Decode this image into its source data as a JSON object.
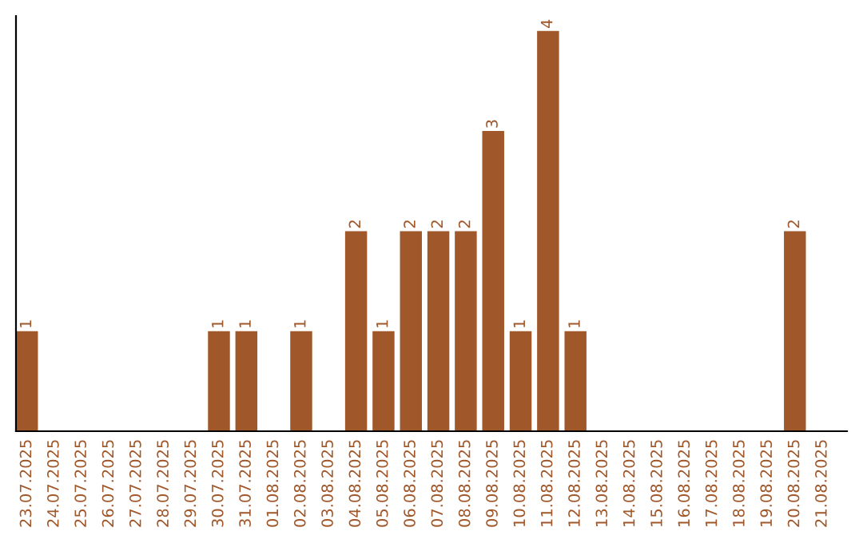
{
  "chart_data": {
    "type": "bar",
    "categories": [
      "23.07.2025",
      "24.07.2025",
      "25.07.2025",
      "26.07.2025",
      "27.07.2025",
      "28.07.2025",
      "29.07.2025",
      "30.07.2025",
      "31.07.2025",
      "01.08.2025",
      "02.08.2025",
      "03.08.2025",
      "04.08.2025",
      "05.08.2025",
      "06.08.2025",
      "07.08.2025",
      "08.08.2025",
      "09.08.2025",
      "10.08.2025",
      "11.08.2025",
      "12.08.2025",
      "13.08.2025",
      "14.08.2025",
      "15.08.2025",
      "16.08.2025",
      "17.08.2025",
      "18.08.2025",
      "19.08.2025",
      "20.08.2025",
      "21.08.2025"
    ],
    "values": [
      1,
      0,
      0,
      0,
      0,
      0,
      0,
      1,
      1,
      0,
      1,
      0,
      2,
      1,
      2,
      2,
      2,
      3,
      1,
      4,
      1,
      0,
      0,
      0,
      0,
      0,
      0,
      0,
      2,
      0
    ],
    "value_labels": [
      "1",
      null,
      null,
      null,
      null,
      null,
      null,
      "1",
      "1",
      null,
      "1",
      null,
      "2",
      "1",
      "2",
      "2",
      "2",
      "3",
      "1",
      "4",
      "1",
      null,
      null,
      null,
      null,
      null,
      null,
      null,
      "2",
      null
    ],
    "color": "#a0572a",
    "ylim": [
      0,
      4.15
    ],
    "tick_labels": "x",
    "grid": false,
    "legend": false
  }
}
